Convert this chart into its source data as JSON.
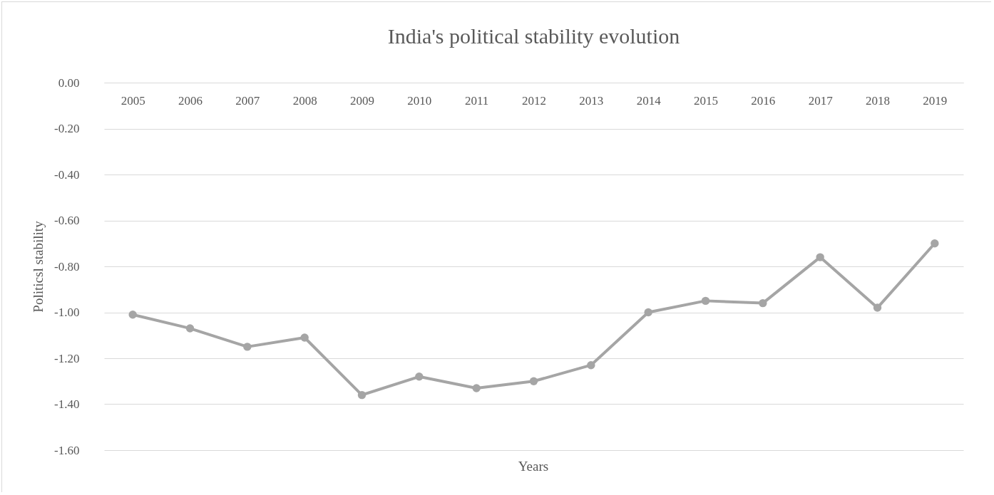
{
  "chart_data": {
    "type": "line",
    "title": "India's political stability evolution",
    "xlabel": "Years",
    "ylabel": "Politicsl stability",
    "categories": [
      "2005",
      "2006",
      "2007",
      "2008",
      "2009",
      "2010",
      "2011",
      "2012",
      "2013",
      "2014",
      "2015",
      "2016",
      "2017",
      "2018",
      "2019"
    ],
    "series": [
      {
        "color": "#a5a5a5",
        "values": [
          -1.01,
          -1.07,
          -1.15,
          -1.11,
          -1.36,
          -1.28,
          -1.33,
          -1.3,
          -1.23,
          -1.0,
          -0.95,
          -0.96,
          -0.76,
          -0.98,
          -0.7
        ]
      }
    ],
    "ylim": [
      -1.6,
      0
    ],
    "yticks": [
      {
        "value": 0,
        "label": "0.00"
      },
      {
        "value": -0.2,
        "label": "-0.20"
      },
      {
        "value": -0.4,
        "label": "-0.40"
      },
      {
        "value": -0.6,
        "label": "-0.60"
      },
      {
        "value": -0.8,
        "label": "-0.80"
      },
      {
        "value": -1,
        "label": "-1.00"
      },
      {
        "value": -1.2,
        "label": "-1.20"
      },
      {
        "value": -1.4,
        "label": "-1.40"
      },
      {
        "value": -1.6,
        "label": "-1.60"
      }
    ],
    "grid": "y",
    "marker": "circle",
    "line_style": "solid"
  }
}
